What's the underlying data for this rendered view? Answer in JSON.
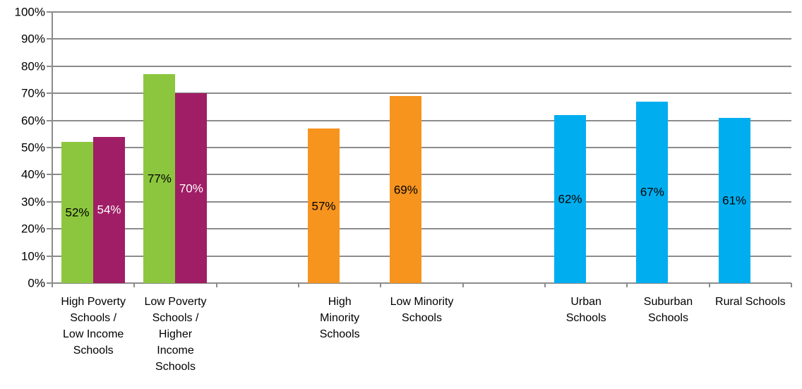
{
  "chart_data": {
    "type": "bar",
    "title": "",
    "xlabel": "",
    "ylabel": "",
    "ylim": [
      0,
      100
    ],
    "ytick_step": 10,
    "ytick_labels": [
      "0%",
      "10%",
      "20%",
      "30%",
      "40%",
      "50%",
      "60%",
      "70%",
      "80%",
      "90%",
      "100%"
    ],
    "grid": true,
    "legend": "none",
    "colors": {
      "green": "#8CC63E",
      "magenta": "#A01E66",
      "orange": "#F7941E",
      "blue": "#00AEEF",
      "gridline": "#8C8C8C",
      "axis": "#8C8C8C",
      "text": "#000000",
      "background": "#FFFFFF"
    },
    "label_position": "inside-center",
    "categories": [
      {
        "label": "High Poverty Schools / Low Income Schools",
        "label_lines": [
          "High Poverty",
          "Schools /",
          "Low Income",
          "Schools"
        ],
        "bars": [
          {
            "value": 52,
            "label": "52%",
            "color": "green",
            "label_color": "#000000"
          },
          {
            "value": 54,
            "label": "54%",
            "color": "magenta",
            "label_color": "#FFFFFF"
          }
        ]
      },
      {
        "label": "Low Poverty Schools / Higher Income Schools",
        "label_lines": [
          "Low Poverty",
          "Schools /",
          "Higher",
          "Income",
          "Schools"
        ],
        "bars": [
          {
            "value": 77,
            "label": "77%",
            "color": "green",
            "label_color": "#000000"
          },
          {
            "value": 70,
            "label": "70%",
            "color": "magenta",
            "label_color": "#FFFFFF"
          }
        ]
      },
      {
        "label": "",
        "label_lines": [],
        "bars": []
      },
      {
        "label": "High Minority Schools",
        "label_lines": [
          "High",
          "Minority",
          "Schools"
        ],
        "bars": [
          {
            "value": 57,
            "label": "57%",
            "color": "orange",
            "label_color": "#000000"
          }
        ]
      },
      {
        "label": "Low Minority Schools",
        "label_lines": [
          "Low Minority",
          "Schools"
        ],
        "bars": [
          {
            "value": 69,
            "label": "69%",
            "color": "orange",
            "label_color": "#000000"
          }
        ]
      },
      {
        "label": "",
        "label_lines": [],
        "bars": []
      },
      {
        "label": "Urban Schools",
        "label_lines": [
          "Urban",
          "Schools"
        ],
        "bars": [
          {
            "value": 62,
            "label": "62%",
            "color": "blue",
            "label_color": "#000000"
          }
        ]
      },
      {
        "label": "Suburban Schools",
        "label_lines": [
          "Suburban",
          "Schools"
        ],
        "bars": [
          {
            "value": 67,
            "label": "67%",
            "color": "blue",
            "label_color": "#000000"
          }
        ]
      },
      {
        "label": "Rural Schools",
        "label_lines": [
          "Rural Schools"
        ],
        "bars": [
          {
            "value": 61,
            "label": "61%",
            "color": "blue",
            "label_color": "#000000"
          }
        ]
      }
    ]
  }
}
